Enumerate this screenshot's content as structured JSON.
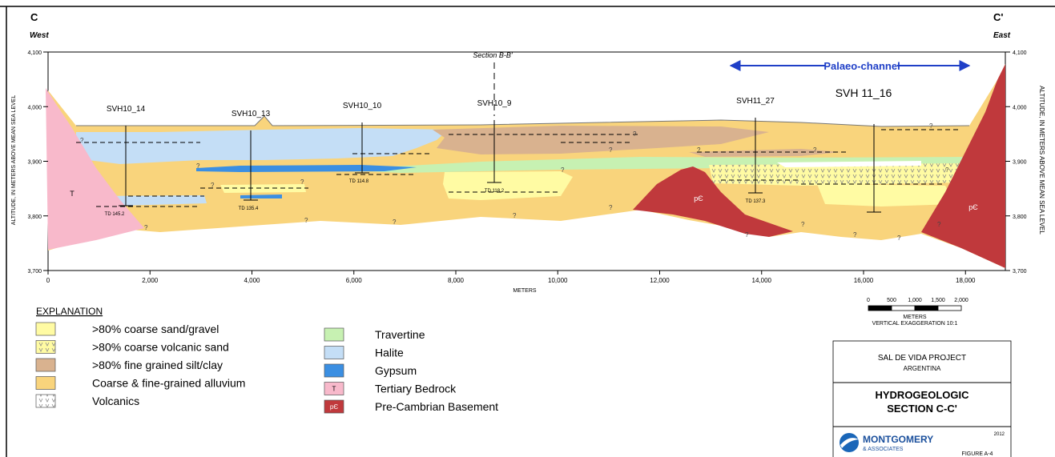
{
  "header": {
    "left_letter": "C",
    "left_direction": "West",
    "right_letter": "C'",
    "right_direction": "East"
  },
  "section_marker": "Section B-B'",
  "palaeo_channel": "Palaeo-channel",
  "query_mark": "?",
  "wells": [
    {
      "name": "SVH10_14",
      "td": "TD 145.2"
    },
    {
      "name": "SVH10_13",
      "td": "TD 135.4"
    },
    {
      "name": "SVH10_10",
      "td": "TD 114.8"
    },
    {
      "name": "SVH10_9",
      "td": "TD 118.2"
    },
    {
      "name": "SVH11_27",
      "td": "TD 137.3"
    },
    {
      "name": "SVH 11_16"
    }
  ],
  "unit_labels": [
    "T",
    "pЄ",
    "pЄ"
  ],
  "x_axis": {
    "ticks": [
      "0",
      "2,000",
      "4,000",
      "6,000",
      "8,000",
      "10,000",
      "12,000",
      "14,000",
      "16,000",
      "18,000"
    ],
    "label": "METERS"
  },
  "y_axis": {
    "ticks": [
      "4,100",
      "4,000",
      "3,900",
      "3,800",
      "3,700"
    ],
    "label": "ALTITUDE, IN METERS ABOVE MEAN SEA LEVEL"
  },
  "explanation": {
    "title": "EXPLANATION",
    "items": [
      {
        "label": ">80% coarse sand/gravel"
      },
      {
        "label": ">80% coarse volcanic sand"
      },
      {
        "label": ">80% fine grained silt/clay"
      },
      {
        "label": "Coarse & fine-grained alluvium"
      },
      {
        "label": "Volcanics"
      },
      {
        "label": "Travertine"
      },
      {
        "label": "Halite"
      },
      {
        "label": "Gypsum"
      },
      {
        "label": "Tertiary Bedrock",
        "symbol": "T"
      },
      {
        "label": "Pre-Cambrian Basement",
        "symbol": "pЄ"
      }
    ]
  },
  "scale_bar": {
    "ticks": [
      "0",
      "500",
      "1,000",
      "1,500",
      "2,000"
    ],
    "unit": "METERS",
    "note": "VERTICAL EXAGGERATION 10:1"
  },
  "title_block": {
    "project": "SAL DE VIDA PROJECT",
    "country": "ARGENTINA",
    "title_lines": [
      "HYDROGEOLOGIC",
      "SECTION C-C'"
    ],
    "year": "2012",
    "company": [
      "MONTGOMERY",
      "& ASSOCIATES"
    ],
    "figure": "FIGURE A-4"
  }
}
